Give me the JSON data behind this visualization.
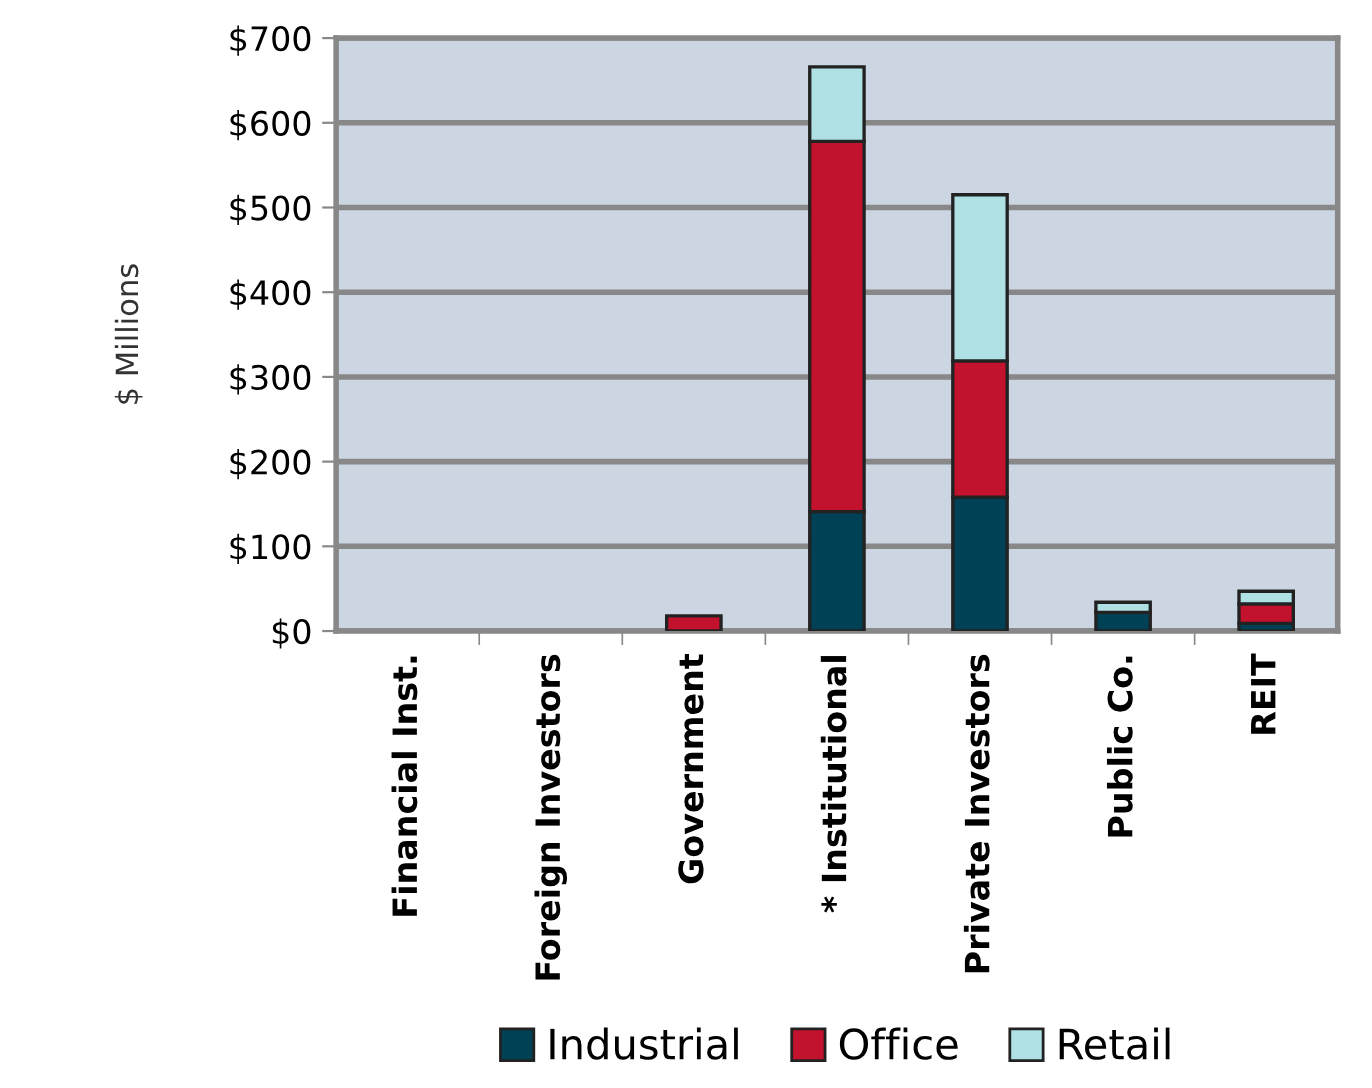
{
  "chart_data": {
    "type": "bar",
    "stacked": true,
    "ylabel": "$ Millions",
    "categories": [
      "Financial Inst.",
      "Foreign Investors",
      "Government",
      "* Institutional",
      "Private Investors",
      "Public Co.",
      "REIT"
    ],
    "series": [
      {
        "name": "Industrial",
        "color": "#004156",
        "values": [
          null,
          null,
          null,
          141,
          158,
          22,
          9
        ]
      },
      {
        "name": "Office",
        "color": "#c3122e",
        "values": [
          null,
          null,
          18,
          437,
          161,
          null,
          23
        ]
      },
      {
        "name": "Retail",
        "color": "#aee0e4",
        "values": [
          null,
          null,
          null,
          88,
          196,
          12,
          15
        ]
      }
    ],
    "ylim": [
      0,
      700
    ],
    "yticks": [
      {
        "value": 0,
        "label": "$0"
      },
      {
        "value": 100,
        "label": "$100"
      },
      {
        "value": 200,
        "label": "$200"
      },
      {
        "value": 300,
        "label": "$300"
      },
      {
        "value": 400,
        "label": "$400"
      },
      {
        "value": 500,
        "label": "$500"
      },
      {
        "value": 600,
        "label": "$600"
      },
      {
        "value": 700,
        "label": "$700"
      }
    ],
    "grid": "y",
    "legend": "bottom"
  }
}
